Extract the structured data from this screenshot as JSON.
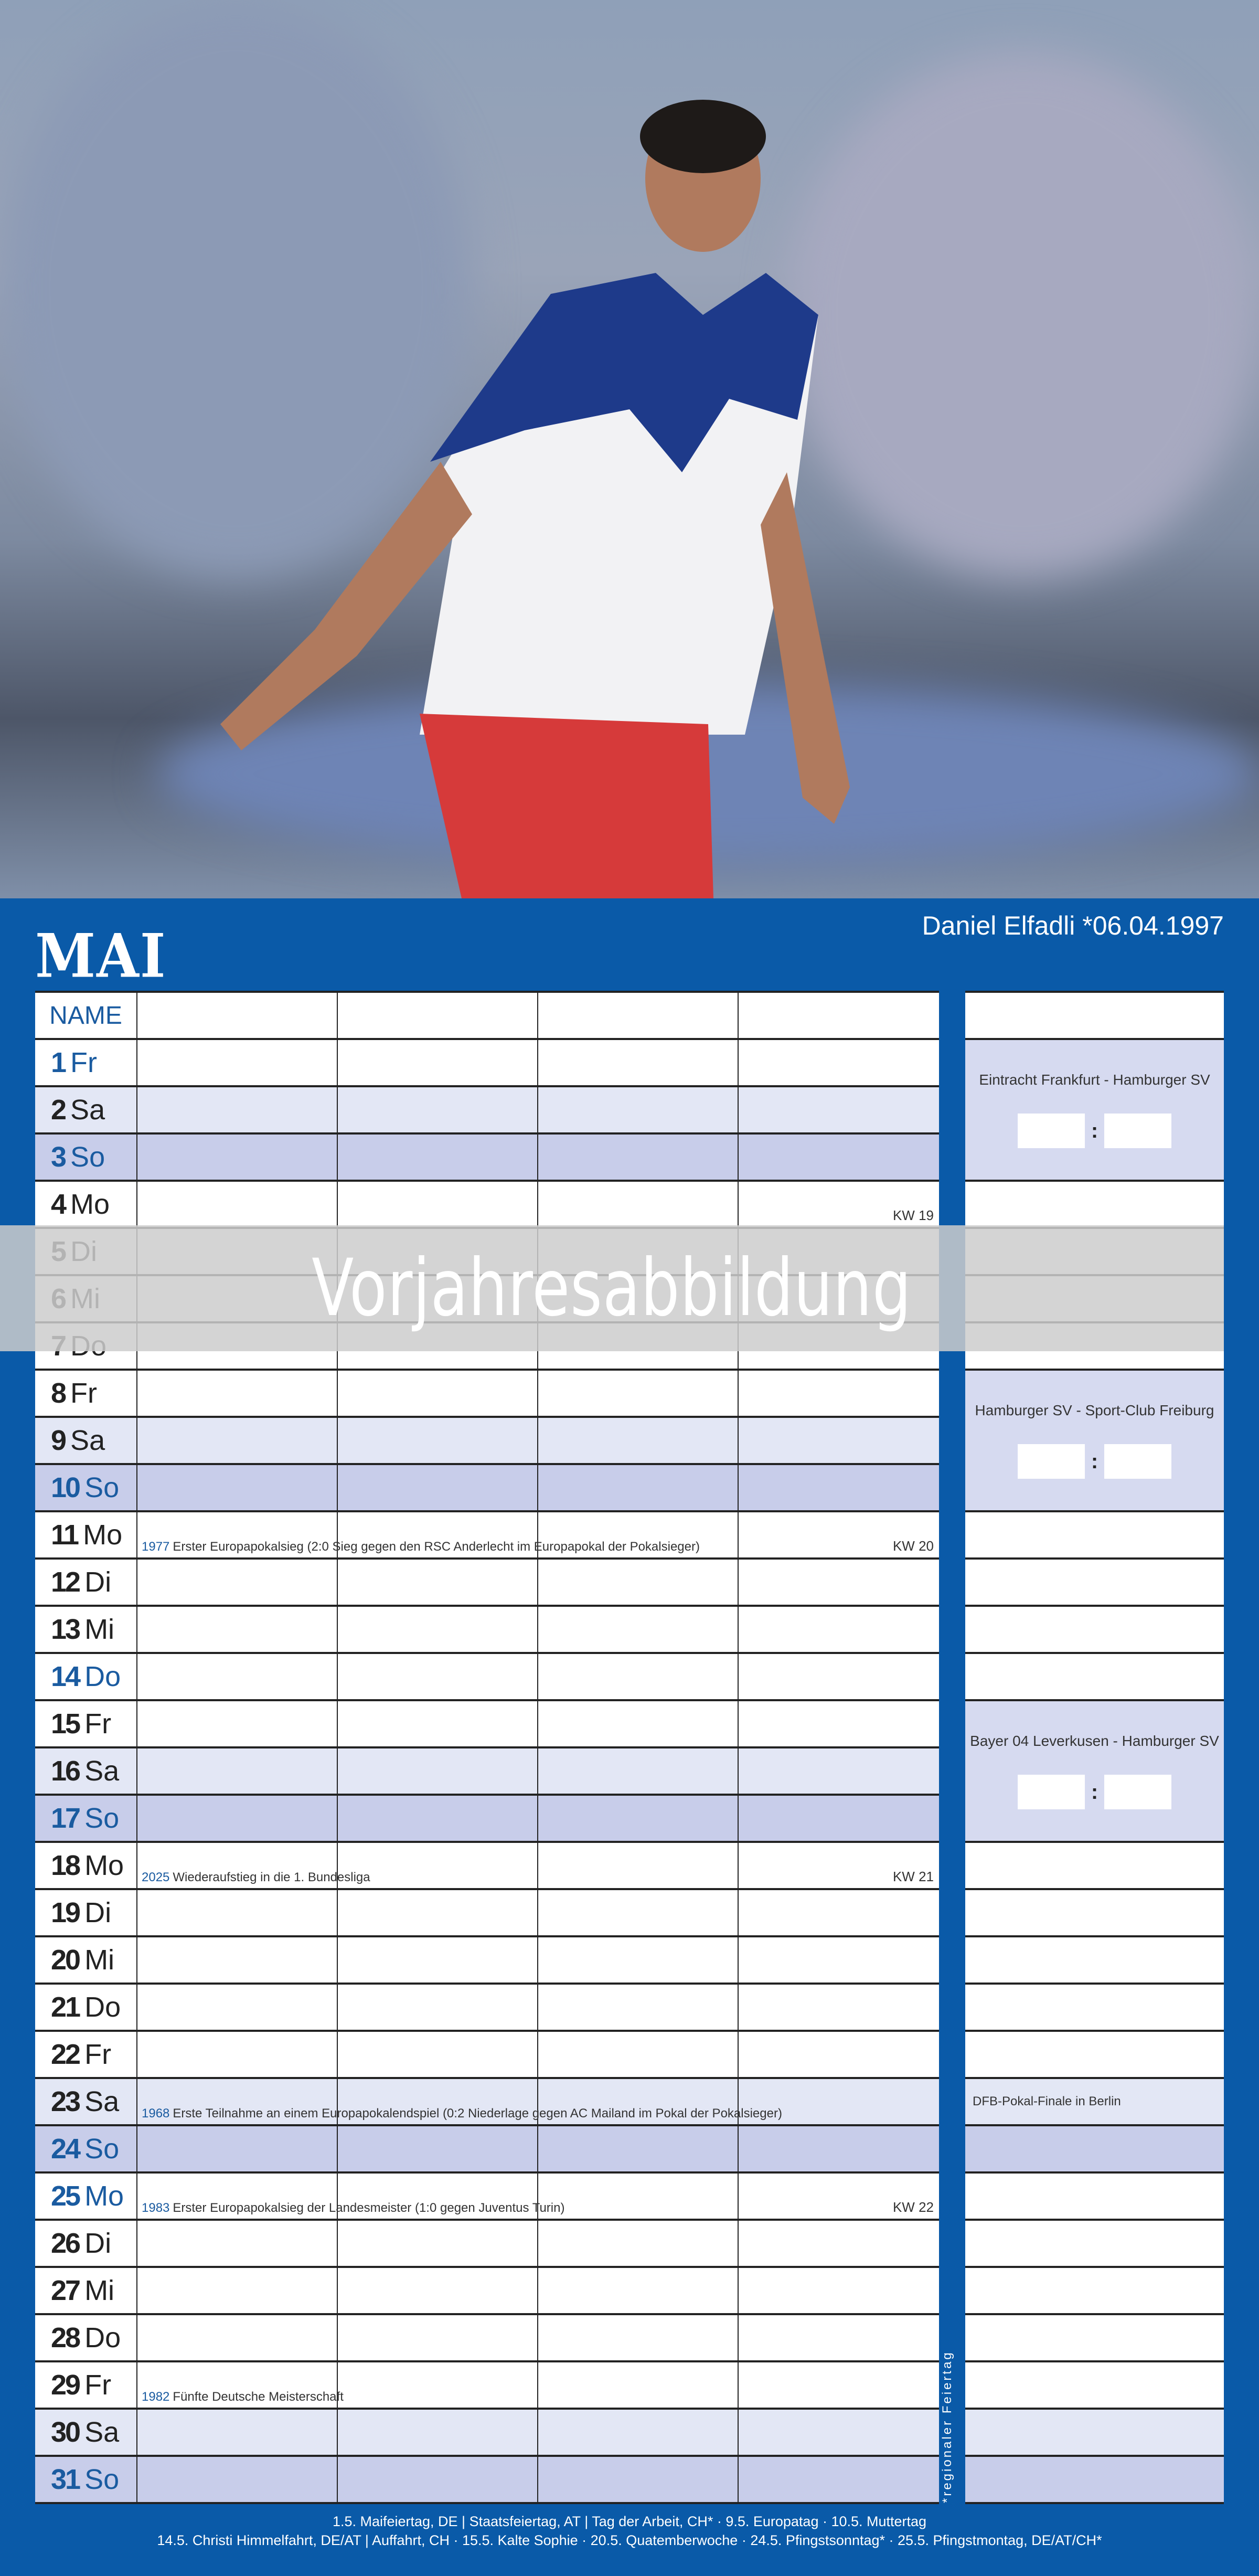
{
  "header": {
    "month": "MAI",
    "player": "Daniel Elfadli *06.04.1997"
  },
  "table": {
    "name_label": "NAME",
    "days": [
      {
        "n": "1",
        "w": "Fr",
        "type": "wd",
        "blue": true
      },
      {
        "n": "2",
        "w": "Sa",
        "type": "sa"
      },
      {
        "n": "3",
        "w": "So",
        "type": "so",
        "blue": true
      },
      {
        "n": "4",
        "w": "Mo",
        "type": "wd",
        "kw": "KW 19"
      },
      {
        "n": "5",
        "w": "Di",
        "type": "wd"
      },
      {
        "n": "6",
        "w": "Mi",
        "type": "wd"
      },
      {
        "n": "7",
        "w": "Do",
        "type": "wd"
      },
      {
        "n": "8",
        "w": "Fr",
        "type": "wd"
      },
      {
        "n": "9",
        "w": "Sa",
        "type": "sa"
      },
      {
        "n": "10",
        "w": "So",
        "type": "so",
        "blue": true
      },
      {
        "n": "11",
        "w": "Mo",
        "type": "wd",
        "kw": "KW 20",
        "note_year": "1977",
        "note": "Erster Europapokalsieg (2:0 Sieg gegen den RSC Anderlecht im Europapokal der Pokalsieger)"
      },
      {
        "n": "12",
        "w": "Di",
        "type": "wd"
      },
      {
        "n": "13",
        "w": "Mi",
        "type": "wd"
      },
      {
        "n": "14",
        "w": "Do",
        "type": "wd",
        "blue": true
      },
      {
        "n": "15",
        "w": "Fr",
        "type": "wd"
      },
      {
        "n": "16",
        "w": "Sa",
        "type": "sa"
      },
      {
        "n": "17",
        "w": "So",
        "type": "so",
        "blue": true
      },
      {
        "n": "18",
        "w": "Mo",
        "type": "wd",
        "kw": "KW 21",
        "note_year": "2025",
        "note": "Wiederaufstieg in die 1. Bundesliga"
      },
      {
        "n": "19",
        "w": "Di",
        "type": "wd"
      },
      {
        "n": "20",
        "w": "Mi",
        "type": "wd"
      },
      {
        "n": "21",
        "w": "Do",
        "type": "wd"
      },
      {
        "n": "22",
        "w": "Fr",
        "type": "wd"
      },
      {
        "n": "23",
        "w": "Sa",
        "type": "sa",
        "note_year": "1968",
        "note": "Erste Teilnahme an einem Europapokalendspiel (0:2 Niederlage gegen AC Mailand im Pokal der Pokalsieger)"
      },
      {
        "n": "24",
        "w": "So",
        "type": "so",
        "blue": true
      },
      {
        "n": "25",
        "w": "Mo",
        "type": "wd",
        "blue": true,
        "kw": "KW 22",
        "note_year": "1983",
        "note": "Erster Europapokalsieg der Landesmeister (1:0 gegen Juventus Turin)"
      },
      {
        "n": "26",
        "w": "Di",
        "type": "wd"
      },
      {
        "n": "27",
        "w": "Mi",
        "type": "wd"
      },
      {
        "n": "28",
        "w": "Do",
        "type": "wd"
      },
      {
        "n": "29",
        "w": "Fr",
        "type": "wd",
        "note_year": "1982",
        "note": "Fünfte Deutsche Meisterschaft"
      },
      {
        "n": "30",
        "w": "Sa",
        "type": "sa"
      },
      {
        "n": "31",
        "w": "So",
        "type": "so",
        "blue": true
      }
    ]
  },
  "side": {
    "matches": [
      {
        "from_day": 1,
        "to_day": 3,
        "teams": "Eintracht Frankfurt - Hamburger SV",
        "separator": ":"
      },
      {
        "from_day": 8,
        "to_day": 10,
        "teams": "Hamburger SV - Sport-Club Freiburg",
        "separator": ":"
      },
      {
        "from_day": 15,
        "to_day": 17,
        "teams": "Bayer 04 Leverkusen - Hamburger SV",
        "separator": ":"
      }
    ],
    "notes": [
      {
        "day": 23,
        "text": "DFB-Pokal-Finale in Berlin"
      }
    ]
  },
  "regional_note": "*regionaler Feiertag",
  "footer": {
    "line1": "1.5. Maifeiertag, DE | Staatsfeiertag, AT | Tag der Arbeit, CH* · 9.5. Europatag · 10.5. Muttertag",
    "line2": "14.5. Christi Himmelfahrt, DE/AT | Auffahrt, CH · 15.5. Kalte Sophie · 20.5. Quatemberwoche · 24.5. Pfingstsonntag* · 25.5. Pfingstmontag, DE/AT/CH*"
  },
  "overlay": {
    "text": "Vorjahresabbildung"
  },
  "colors": {
    "brand_blue": "#0a5aa8",
    "saturday": "#e3e7f5",
    "sunday": "#c8cdea",
    "highlight_text": "#1a5ba0"
  }
}
